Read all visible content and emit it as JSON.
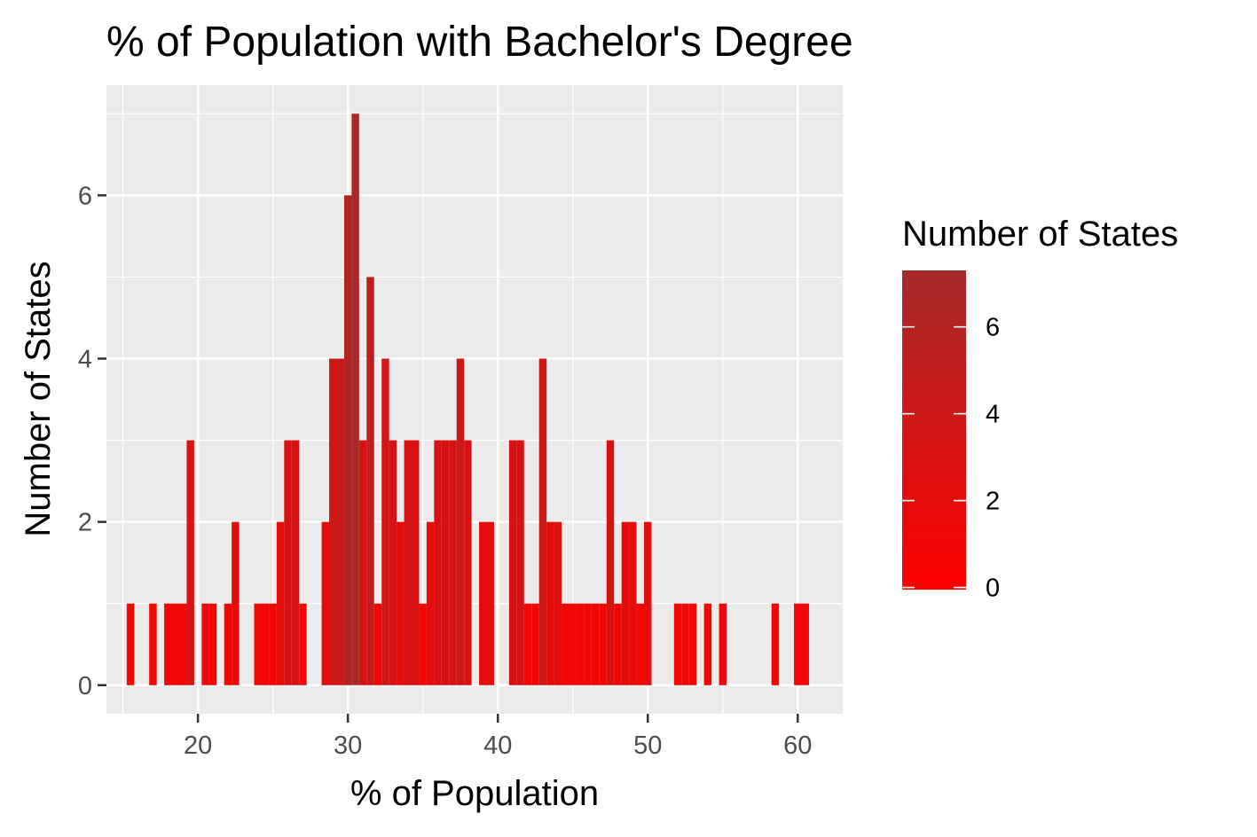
{
  "chart_data": {
    "type": "bar",
    "title": "% of Population with Bachelor's Degree",
    "xlabel": "% of Population",
    "ylabel": "Number of States",
    "xlim": [
      13.9,
      63.0
    ],
    "ylim": [
      -0.35,
      7.35
    ],
    "x_ticks": [
      20,
      30,
      40,
      50,
      60
    ],
    "y_ticks": [
      0,
      2,
      4,
      6
    ],
    "bin_width": 0.5,
    "grid": true,
    "bars": [
      {
        "x": 15.5,
        "count": 1
      },
      {
        "x": 17.0,
        "count": 1
      },
      {
        "x": 18.0,
        "count": 1
      },
      {
        "x": 18.5,
        "count": 1
      },
      {
        "x": 19.0,
        "count": 1
      },
      {
        "x": 19.5,
        "count": 3
      },
      {
        "x": 20.5,
        "count": 1
      },
      {
        "x": 21.0,
        "count": 1
      },
      {
        "x": 22.0,
        "count": 1
      },
      {
        "x": 22.5,
        "count": 2
      },
      {
        "x": 24.0,
        "count": 1
      },
      {
        "x": 24.5,
        "count": 1
      },
      {
        "x": 25.0,
        "count": 1
      },
      {
        "x": 25.5,
        "count": 2
      },
      {
        "x": 26.0,
        "count": 3
      },
      {
        "x": 26.5,
        "count": 3
      },
      {
        "x": 27.0,
        "count": 1
      },
      {
        "x": 28.5,
        "count": 2
      },
      {
        "x": 29.0,
        "count": 4
      },
      {
        "x": 29.5,
        "count": 4
      },
      {
        "x": 30.0,
        "count": 6
      },
      {
        "x": 30.5,
        "count": 7
      },
      {
        "x": 31.0,
        "count": 3
      },
      {
        "x": 31.5,
        "count": 5
      },
      {
        "x": 32.0,
        "count": 1
      },
      {
        "x": 32.5,
        "count": 4
      },
      {
        "x": 33.0,
        "count": 3
      },
      {
        "x": 33.5,
        "count": 2
      },
      {
        "x": 34.0,
        "count": 3
      },
      {
        "x": 34.5,
        "count": 3
      },
      {
        "x": 35.0,
        "count": 1
      },
      {
        "x": 35.5,
        "count": 2
      },
      {
        "x": 36.0,
        "count": 3
      },
      {
        "x": 36.5,
        "count": 3
      },
      {
        "x": 37.0,
        "count": 3
      },
      {
        "x": 37.5,
        "count": 4
      },
      {
        "x": 38.0,
        "count": 3
      },
      {
        "x": 39.0,
        "count": 2
      },
      {
        "x": 39.5,
        "count": 2
      },
      {
        "x": 41.0,
        "count": 3
      },
      {
        "x": 41.5,
        "count": 3
      },
      {
        "x": 42.0,
        "count": 1
      },
      {
        "x": 42.5,
        "count": 1
      },
      {
        "x": 43.0,
        "count": 4
      },
      {
        "x": 43.5,
        "count": 2
      },
      {
        "x": 44.0,
        "count": 2
      },
      {
        "x": 44.5,
        "count": 1
      },
      {
        "x": 45.0,
        "count": 1
      },
      {
        "x": 45.5,
        "count": 1
      },
      {
        "x": 46.0,
        "count": 1
      },
      {
        "x": 46.5,
        "count": 1
      },
      {
        "x": 47.0,
        "count": 1
      },
      {
        "x": 47.5,
        "count": 3
      },
      {
        "x": 48.0,
        "count": 1
      },
      {
        "x": 48.5,
        "count": 2
      },
      {
        "x": 49.0,
        "count": 2
      },
      {
        "x": 49.5,
        "count": 1
      },
      {
        "x": 50.0,
        "count": 2
      },
      {
        "x": 52.0,
        "count": 1
      },
      {
        "x": 52.5,
        "count": 1
      },
      {
        "x": 53.0,
        "count": 1
      },
      {
        "x": 54.0,
        "count": 1
      },
      {
        "x": 55.0,
        "count": 1
      },
      {
        "x": 58.5,
        "count": 1
      },
      {
        "x": 60.0,
        "count": 1
      },
      {
        "x": 60.5,
        "count": 1
      }
    ],
    "legend": {
      "title": "Number of States",
      "placement": "right",
      "ticks": [
        0,
        2,
        4,
        6
      ],
      "range": [
        0,
        7
      ],
      "color_low": "#FF0000",
      "color_high": "#A52A2A"
    },
    "colors": {
      "panel_background": "#EBEBEB",
      "grid": "#FFFFFF",
      "tick_text": "#4D4D4D"
    }
  }
}
